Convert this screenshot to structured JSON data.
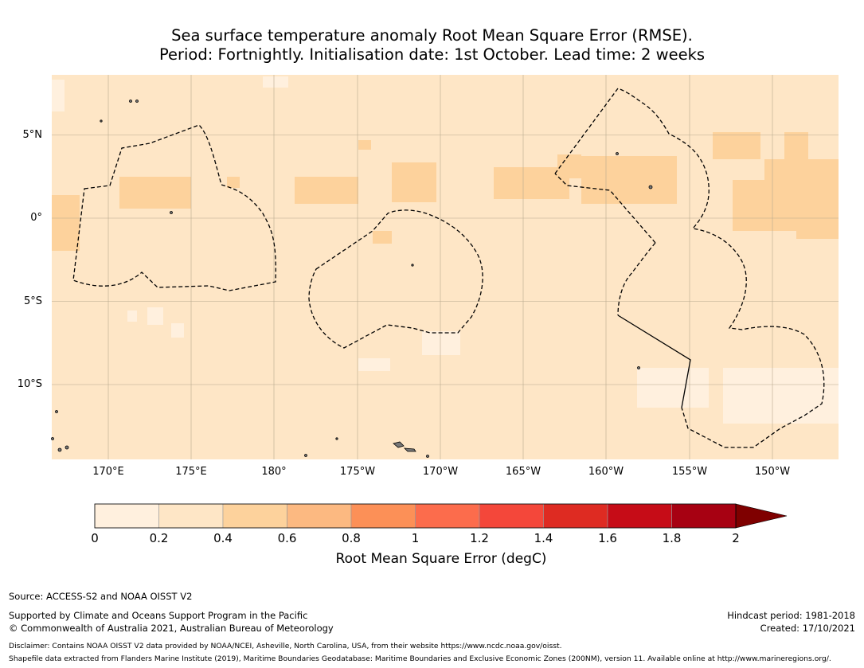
{
  "title": {
    "line1": "Sea surface temperature anomaly Root Mean Square Error (RMSE).",
    "line2": "Period: Fortnightly. Initialisation date: 1st October. Lead time: 2 weeks"
  },
  "map": {
    "lat_labels": [
      "5°N",
      "0°",
      "5°S",
      "10°S"
    ],
    "lon_labels": [
      "170°E",
      "175°E",
      "180°",
      "175°W",
      "170°W",
      "165°W",
      "160°W",
      "155°W",
      "150°W"
    ],
    "lat_values": [
      5,
      0,
      -5,
      -10
    ],
    "lon_values": [
      170,
      175,
      180,
      185,
      190,
      195,
      200,
      205,
      210
    ],
    "extent": {
      "lon_min": 166,
      "lon_max": 213.5,
      "lat_min": -14.5,
      "lat_max": 8.7
    },
    "colors": {
      "base": "#fee6c6",
      "low": "#fff0de",
      "mid": "#fdd29c",
      "grid": "#b8a88e",
      "land": "#777777"
    }
  },
  "colorbar": {
    "levels": [
      "0",
      "0.2",
      "0.4",
      "0.6",
      "0.8",
      "1",
      "1.2",
      "1.4",
      "1.6",
      "1.8",
      "2"
    ],
    "colors": [
      "#fff0de",
      "#fee6c6",
      "#fdd29c",
      "#fcb981",
      "#fc9057",
      "#fc6c4c",
      "#f4473a",
      "#de2b22",
      "#c60c17",
      "#a70112",
      "#7f0000"
    ],
    "label": "Root Mean Square Error (degC)"
  },
  "footer": {
    "source": "Source: ACCESS-S2 and NOAA OISST V2",
    "supported": "Supported by Climate and Oceans Support Program in the Pacific",
    "copyright": "© Commonwealth of Australia 2021, Australian Bureau of Meteorology",
    "hindcast": "Hindcast period: 1981-2018",
    "created": "Created: 17/10/2021",
    "disclaimer": "Disclaimer: Contains NOAA OISST V2 data provided by NOAA/NCEI, Asheville, North Carolina, USA, from their website https://www.ncdc.noaa.gov/oisst.",
    "shapefile": "Shapefile data extracted from Flanders Marine Institute (2019), Maritime Boundaries Geodatabase: Maritime Boundaries and Exclusive Economic Zones (200NM), version 11. Available online at http://www.marineregions.org/."
  }
}
